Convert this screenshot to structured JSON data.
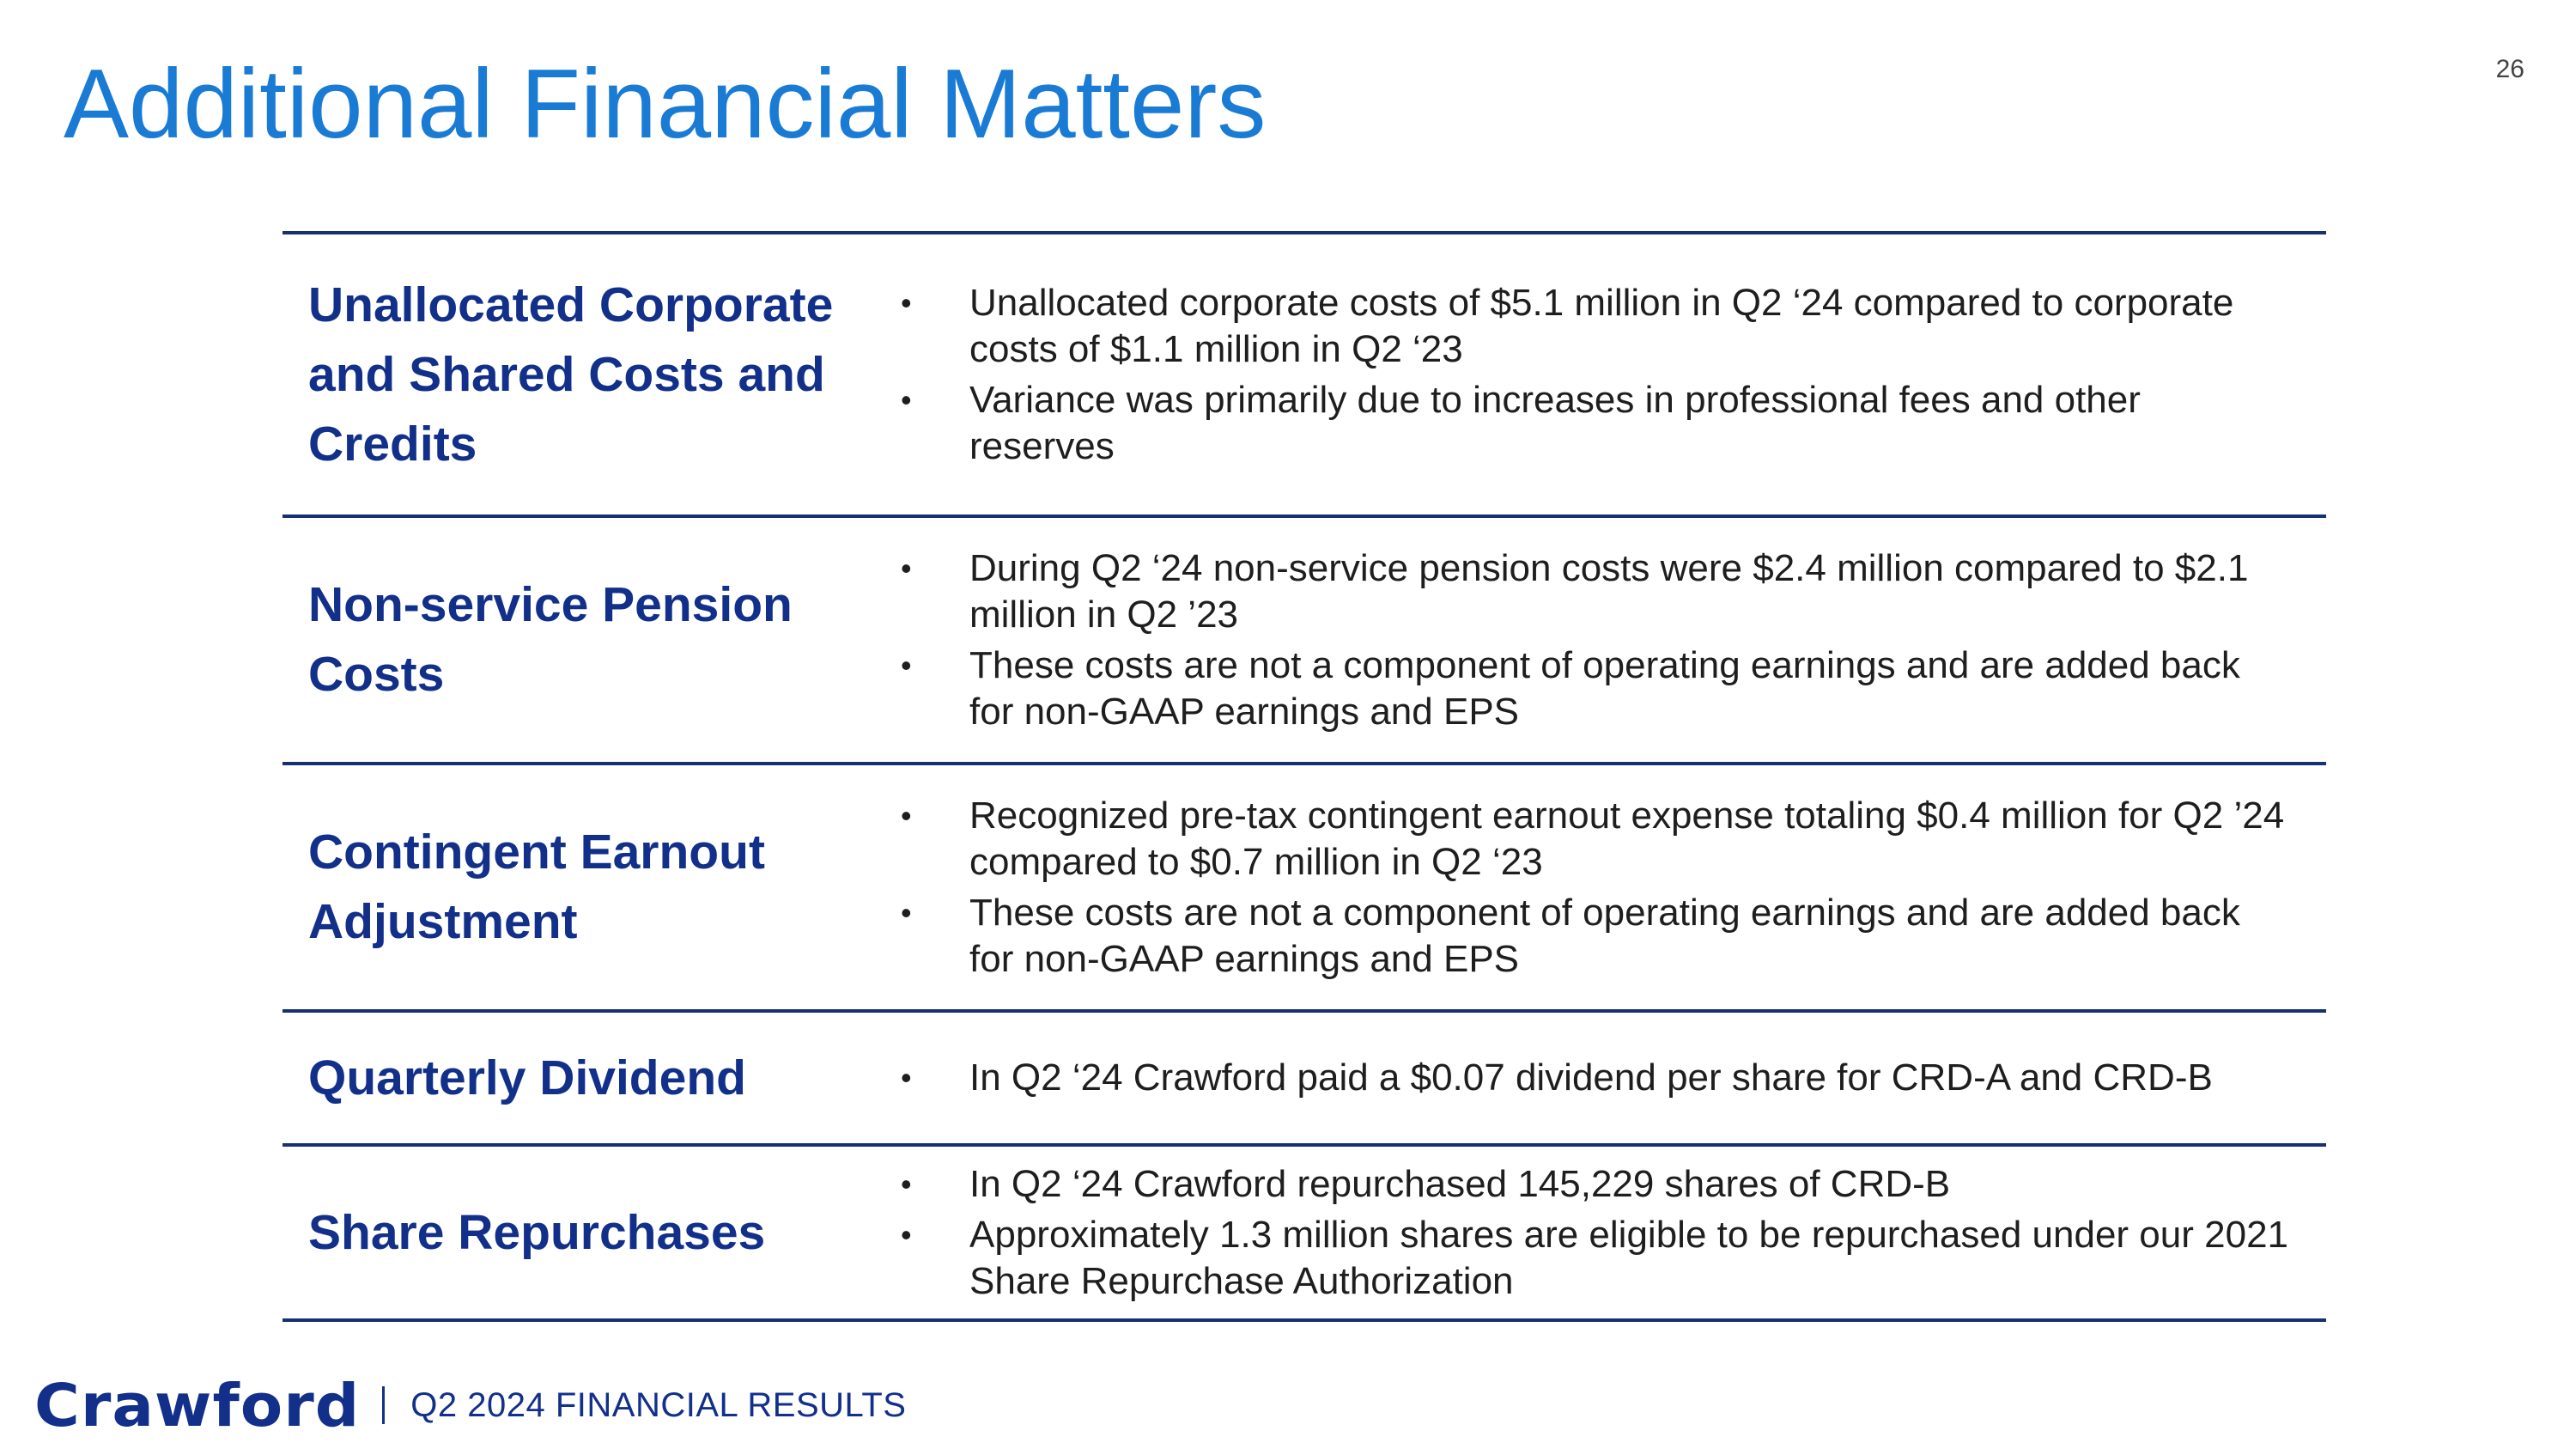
{
  "slide": {
    "title": "Additional Financial Matters",
    "page_number": "26"
  },
  "rows": [
    {
      "label": "Unallocated Corporate and Shared Costs and Credits",
      "bullets": [
        "Unallocated corporate costs of $5.1 million in Q2 ‘24 compared to corporate costs of $1.1 million in Q2 ‘23",
        "Variance was primarily due to increases in professional fees and other reserves"
      ]
    },
    {
      "label": "Non-service Pension Costs",
      "bullets": [
        "During Q2 ‘24 non-service pension costs were $2.4 million compared to $2.1 million in Q2 ’23",
        "These costs are not a component of operating earnings and are added back for non-GAAP earnings and EPS"
      ]
    },
    {
      "label": "Contingent Earnout Adjustment",
      "bullets": [
        "Recognized pre-tax contingent earnout expense totaling $0.4 million for Q2 ’24 compared to $0.7 million in Q2 ‘23",
        "These costs are not a component of operating earnings and are added back for non-GAAP earnings and EPS"
      ]
    },
    {
      "label": "Quarterly Dividend",
      "bullets": [
        "In Q2 ‘24 Crawford paid a $0.07 dividend per share for CRD-A and CRD-B"
      ]
    },
    {
      "label": "Share Repurchases",
      "bullets": [
        "In Q2 ‘24 Crawford repurchased 145,229 shares of CRD-B",
        "Approximately 1.3 million shares are eligible to be repurchased under our 2021 Share Repurchase Authorization"
      ]
    }
  ],
  "bullet_glyph": "•",
  "footer": {
    "logo_text": "Crawford",
    "caption": "Q2 2024 FINANCIAL RESULTS"
  }
}
